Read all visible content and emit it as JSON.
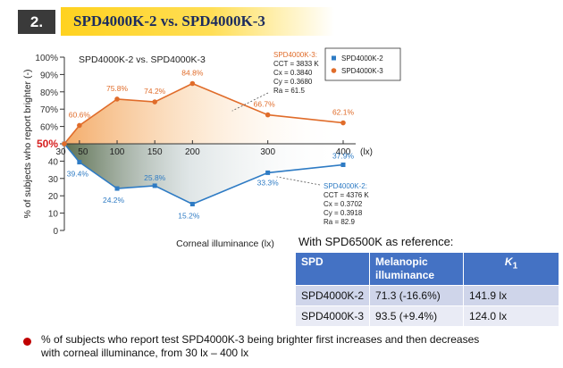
{
  "header": {
    "slide_number": "2.",
    "title": "SPD4000K-2 vs. SPD4000K-3"
  },
  "chart_data": {
    "type": "line",
    "title": "SPD4000K-2  vs.  SPD4000K-3",
    "xlabel": "Corneal illuminance (lx)",
    "ylabel": "% of subjects who report brighter (-)",
    "x_unit": "(lx)",
    "xlim": [
      30,
      400
    ],
    "ylim": [
      0,
      100
    ],
    "x_ticks": [
      30,
      50,
      100,
      150,
      200,
      300,
      400
    ],
    "x_tick_labels": [
      "30",
      "50",
      "100",
      "150",
      "200",
      "300",
      "400"
    ],
    "y_ticks": [
      0,
      10,
      20,
      30,
      40,
      50,
      60,
      70,
      80,
      90,
      100
    ],
    "y_tick_labels": [
      "0",
      "10",
      "20",
      "30",
      "40",
      "50%",
      "60%",
      "70%",
      "80%",
      "90%",
      "100%"
    ],
    "reference_line": 50,
    "grid": false,
    "legend_position": "top-right",
    "series": [
      {
        "name": "SPD4000K-2",
        "color": "#2e7bc4",
        "marker": "square",
        "x": [
          30,
          50,
          100,
          150,
          200,
          300,
          400
        ],
        "y": [
          50,
          39.4,
          24.2,
          25.8,
          15.2,
          33.3,
          37.9
        ],
        "labels": [
          "",
          "39.4%",
          "24.2%",
          "25.8%",
          "15.2%",
          "33.3%",
          "37.9%"
        ]
      },
      {
        "name": "SPD4000K-3",
        "color": "#e06c2a",
        "marker": "circle",
        "x": [
          30,
          50,
          100,
          150,
          200,
          300,
          400
        ],
        "y": [
          50,
          60.6,
          75.8,
          74.2,
          84.8,
          66.7,
          62.1
        ],
        "labels": [
          "",
          "60.6%",
          "75.8%",
          "74.2%",
          "84.8%",
          "66.7%",
          "62.1%"
        ]
      }
    ],
    "annotations": [
      {
        "series": "SPD4000K-3",
        "lines": [
          "SPD4000K-3:",
          "CCT = 3833 K",
          "Cx = 0.3840",
          "Cy = 0.3680",
          "Ra = 61.5"
        ]
      },
      {
        "series": "SPD4000K-2",
        "lines": [
          "SPD4000K-2:",
          "CCT = 4376 K",
          "Cx = 0.3702",
          "Cy = 0.3918",
          "Ra = 82.9"
        ]
      }
    ]
  },
  "reference_table": {
    "title": "With SPD6500K as reference:",
    "headers": {
      "spd": "SPD",
      "mel_line1": "Melanopic",
      "mel_line2": "illuminance",
      "k": "K",
      "k_sub": "1"
    },
    "rows": [
      {
        "spd": "SPD4000K-2",
        "melanopic": "71.3 (-16.6%)",
        "k1": "141.9 lx"
      },
      {
        "spd": "SPD4000K-3",
        "melanopic": "93.5 (+9.4%)",
        "k1": "124.0 lx"
      }
    ]
  },
  "note": "% of subjects who report test SPD4000K-3 being brighter first increases and then decreases with corneal illuminance, from 30 lx – 400 lx",
  "colors": {
    "blue": "#2e7bc4",
    "orange": "#e06c2a",
    "title_bar": "#ffd21f",
    "table_header": "#4472c4",
    "bullet": "#c00000"
  }
}
